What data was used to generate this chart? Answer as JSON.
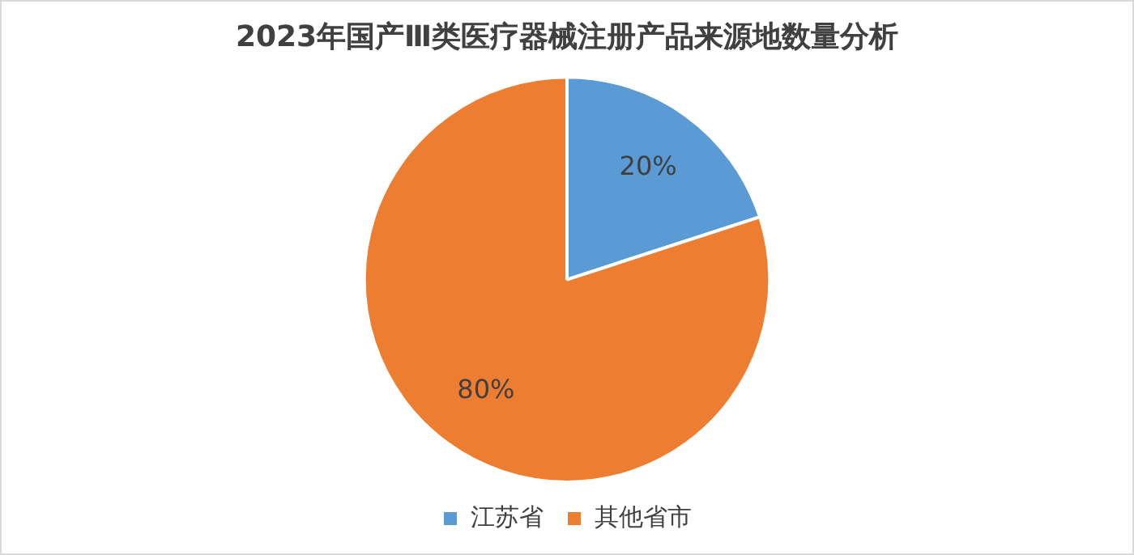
{
  "chart_data": {
    "type": "pie",
    "title": "2023年国产Ⅲ类医疗器械注册产品来源地数量分析",
    "categories": [
      "江苏省",
      "其他省市"
    ],
    "values": [
      20,
      80
    ],
    "value_labels": [
      "20%",
      "80%"
    ],
    "colors": [
      "#5b9bd5",
      "#ed7d31"
    ],
    "legend": "bottom"
  }
}
